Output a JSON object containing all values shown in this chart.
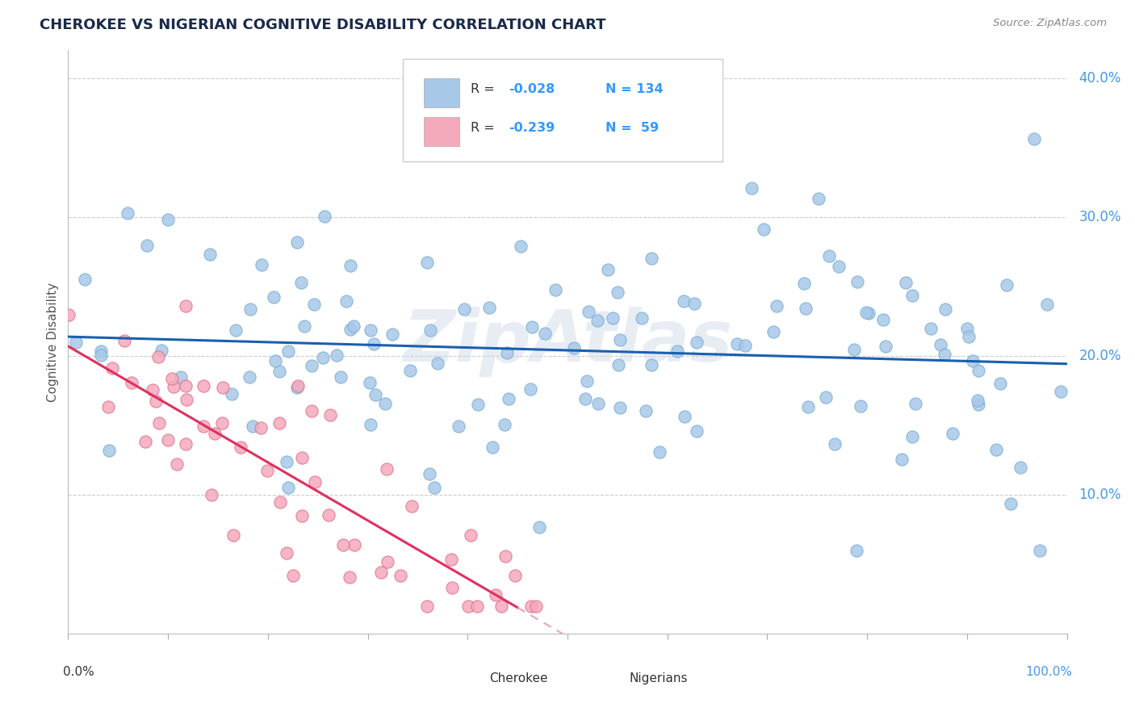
{
  "title": "CHEROKEE VS NIGERIAN COGNITIVE DISABILITY CORRELATION CHART",
  "source": "Source: ZipAtlas.com",
  "ylabel": "Cognitive Disability",
  "xlim": [
    0.0,
    1.0
  ],
  "ylim": [
    0.0,
    0.42
  ],
  "cherokee_color": "#a8c8e8",
  "cherokee_edge_color": "#7aafd4",
  "nigerian_color": "#f5aabb",
  "nigerian_edge_color": "#e07090",
  "cherokee_line_color": "#1a5faf",
  "nigerian_line_color": "#e03060",
  "nigerian_dashed_color": "#f0a0b8",
  "watermark": "ZipAtlas",
  "background_color": "#ffffff",
  "grid_color": "#cccccc",
  "title_color": "#1a2a4a",
  "source_color": "#888888",
  "ylabel_color": "#555555",
  "right_label_color": "#4499ee",
  "legend_text_color": "#333333",
  "legend_value_color": "#3399ff"
}
